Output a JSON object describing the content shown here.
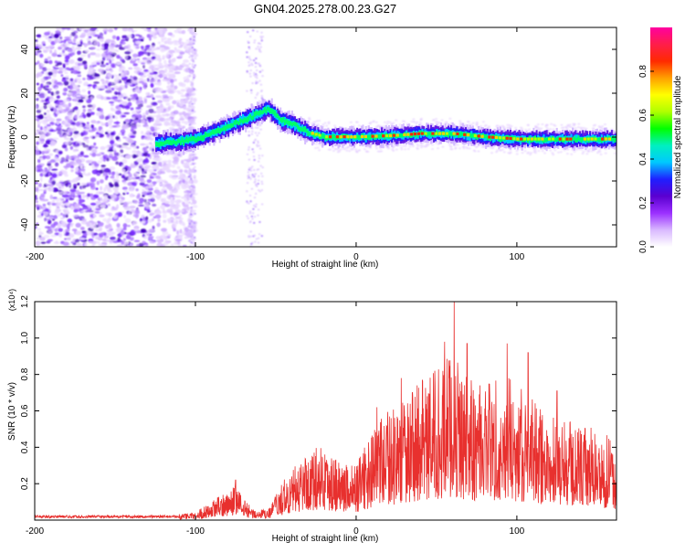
{
  "chart_data": [
    {
      "type": "heatmap",
      "title": "GN04.2025.278.00.23.G27",
      "xlabel": "Height of straight line (km)",
      "ylabel": "Frequency (Hz)",
      "xlim": [
        -200,
        162
      ],
      "ylim": [
        -50,
        50
      ],
      "x_ticks": [
        -200,
        -100,
        0,
        100
      ],
      "y_ticks": [
        -40,
        -20,
        0,
        20,
        40
      ],
      "colorbar": {
        "label": "Normalized spectral amplitude",
        "range": [
          0,
          1
        ],
        "ticks": [
          "0.0",
          "0.2",
          "0.4",
          "0.6",
          "0.8"
        ],
        "colors": [
          "#ffffff",
          "#d9b8ff",
          "#9b30ff",
          "#5a00d0",
          "#1f1fff",
          "#00c8ff",
          "#00f0c0",
          "#00ff00",
          "#b0ff00",
          "#ffff00",
          "#ffa000",
          "#ff2a00",
          "#ff1e4a",
          "#ff00a0"
        ]
      },
      "ridge": [
        {
          "x": -125,
          "y": -3
        },
        {
          "x": -110,
          "y": -2
        },
        {
          "x": -100,
          "y": -1
        },
        {
          "x": -90,
          "y": 2
        },
        {
          "x": -80,
          "y": 5
        },
        {
          "x": -70,
          "y": 8
        },
        {
          "x": -60,
          "y": 11
        },
        {
          "x": -55,
          "y": 13
        },
        {
          "x": -48,
          "y": 8
        },
        {
          "x": -40,
          "y": 6
        },
        {
          "x": -30,
          "y": 2
        },
        {
          "x": -20,
          "y": 0
        },
        {
          "x": 0,
          "y": 0
        },
        {
          "x": 20,
          "y": 0.5
        },
        {
          "x": 40,
          "y": 1.5
        },
        {
          "x": 60,
          "y": 1.5
        },
        {
          "x": 80,
          "y": 0
        },
        {
          "x": 100,
          "y": -1
        },
        {
          "x": 120,
          "y": -1
        },
        {
          "x": 140,
          "y": -1
        },
        {
          "x": 162,
          "y": -1
        }
      ],
      "noise_region": [
        -200,
        -125
      ]
    },
    {
      "type": "line",
      "xlabel": "Height of straight line (km)",
      "ylabel": "SNR (10 * v/v)",
      "y_multiplier": "(x10⁴)",
      "xlim": [
        -200,
        162
      ],
      "ylim": [
        0,
        1.2
      ],
      "x_ticks": [
        -200,
        -100,
        0,
        100
      ],
      "y_ticks": [
        "0.2",
        "0.4",
        "0.6",
        "0.8",
        "1.0",
        "1.2"
      ],
      "color": "#e8302e",
      "envelope": [
        {
          "x": -200,
          "y": 0.015
        },
        {
          "x": -120,
          "y": 0.02
        },
        {
          "x": -100,
          "y": 0.04
        },
        {
          "x": -85,
          "y": 0.12
        },
        {
          "x": -75,
          "y": 0.18
        },
        {
          "x": -65,
          "y": 0.06
        },
        {
          "x": -55,
          "y": 0.05
        },
        {
          "x": -45,
          "y": 0.2
        },
        {
          "x": -30,
          "y": 0.35
        },
        {
          "x": -20,
          "y": 0.38
        },
        {
          "x": -10,
          "y": 0.3
        },
        {
          "x": 0,
          "y": 0.28
        },
        {
          "x": 10,
          "y": 0.45
        },
        {
          "x": 20,
          "y": 0.55
        },
        {
          "x": 30,
          "y": 0.6
        },
        {
          "x": 40,
          "y": 0.7
        },
        {
          "x": 50,
          "y": 0.75
        },
        {
          "x": 60,
          "y": 0.85
        },
        {
          "x": 70,
          "y": 0.72
        },
        {
          "x": 80,
          "y": 0.7
        },
        {
          "x": 90,
          "y": 0.75
        },
        {
          "x": 100,
          "y": 0.68
        },
        {
          "x": 110,
          "y": 0.6
        },
        {
          "x": 120,
          "y": 0.55
        },
        {
          "x": 130,
          "y": 0.5
        },
        {
          "x": 140,
          "y": 0.48
        },
        {
          "x": 150,
          "y": 0.45
        },
        {
          "x": 162,
          "y": 0.4
        }
      ],
      "peaks": [
        {
          "x": -75,
          "y": 0.22
        },
        {
          "x": 13,
          "y": 0.62
        },
        {
          "x": 28,
          "y": 0.78
        },
        {
          "x": 38,
          "y": 0.74
        },
        {
          "x": 49,
          "y": 0.82
        },
        {
          "x": 55,
          "y": 0.98
        },
        {
          "x": 61,
          "y": 1.2
        },
        {
          "x": 69,
          "y": 0.97
        },
        {
          "x": 77,
          "y": 0.74
        },
        {
          "x": 94,
          "y": 0.97
        },
        {
          "x": 107,
          "y": 0.92
        },
        {
          "x": 125,
          "y": 0.71
        }
      ]
    }
  ]
}
